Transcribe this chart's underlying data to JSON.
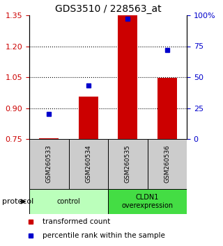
{
  "title": "GDS3510 / 228563_at",
  "samples": [
    "GSM260533",
    "GSM260534",
    "GSM260535",
    "GSM260536"
  ],
  "transformed_counts": [
    0.755,
    0.955,
    1.35,
    1.045
  ],
  "percentile_ranks": [
    0.2,
    0.43,
    0.97,
    0.72
  ],
  "ylim_left": [
    0.75,
    1.35
  ],
  "left_ticks": [
    0.75,
    0.9,
    1.05,
    1.2,
    1.35
  ],
  "right_ticks": [
    0,
    25,
    50,
    75,
    100
  ],
  "right_tick_labels": [
    "0",
    "25",
    "50",
    "75",
    "100%"
  ],
  "dotted_lines": [
    0.9,
    1.05,
    1.2
  ],
  "bar_color": "#cc0000",
  "dot_color": "#0000cc",
  "bar_width": 0.5,
  "groups": [
    {
      "label": "control",
      "samples": [
        0,
        1
      ],
      "color": "#bbffbb"
    },
    {
      "label": "CLDN1\noverexpression",
      "samples": [
        2,
        3
      ],
      "color": "#44dd44"
    }
  ],
  "sample_box_color": "#cccccc",
  "legend_bar_label": "transformed count",
  "legend_dot_label": "percentile rank within the sample",
  "protocol_label": "protocol",
  "background_color": "#ffffff"
}
